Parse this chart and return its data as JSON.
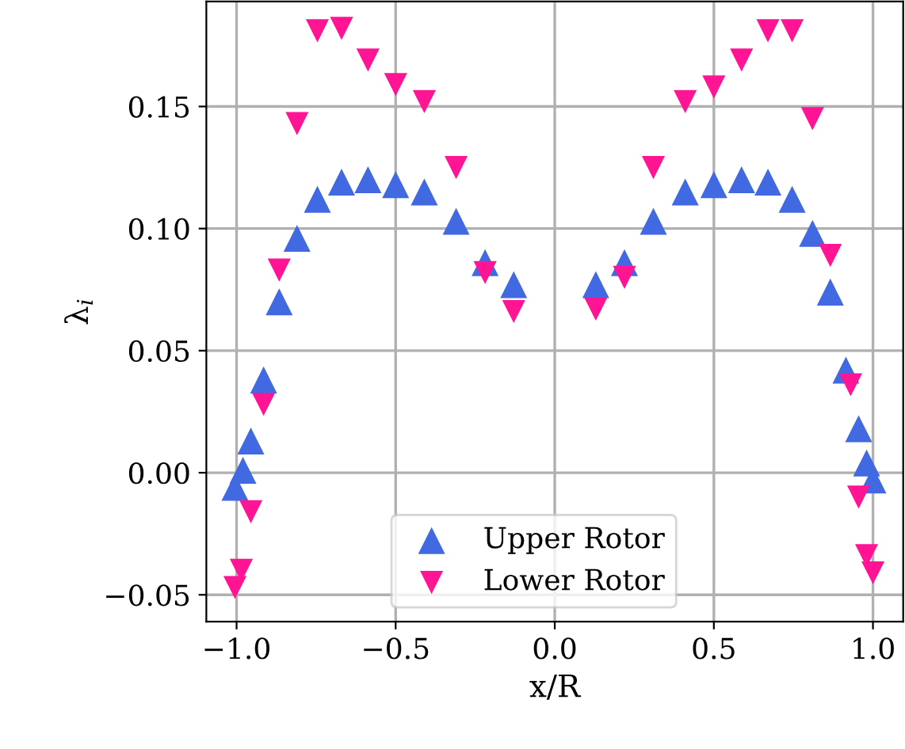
{
  "chart_data": {
    "type": "scatter",
    "xlabel": "x/R",
    "ylabel": "λ$_{i}$",
    "xlim": [
      -1.095,
      1.095
    ],
    "ylim": [
      -0.061,
      0.193
    ],
    "xticks": [
      {
        "value": -1.0,
        "label": "−1.0"
      },
      {
        "value": -0.5,
        "label": "−0.5"
      },
      {
        "value": 0.0,
        "label": "0.0"
      },
      {
        "value": 0.5,
        "label": "0.5"
      },
      {
        "value": 1.0,
        "label": "1.0"
      }
    ],
    "yticks": [
      {
        "value": -0.05,
        "label": "−0.05"
      },
      {
        "value": 0.0,
        "label": "0.00"
      },
      {
        "value": 0.05,
        "label": "0.05"
      },
      {
        "value": 0.1,
        "label": "0.10"
      },
      {
        "value": 0.15,
        "label": "0.15"
      }
    ],
    "grid": true,
    "legend": "bottom",
    "series": [
      {
        "name": "Upper Rotor",
        "color": "#4169e1",
        "marker": "triangle",
        "x": [
          -1.005,
          -0.98,
          -0.955,
          -0.915,
          -0.866,
          -0.81,
          -0.746,
          -0.67,
          -0.587,
          -0.5,
          -0.41,
          -0.31,
          -0.219,
          -0.129,
          0.129,
          0.219,
          0.31,
          0.41,
          0.5,
          0.587,
          0.67,
          0.746,
          0.81,
          0.866,
          0.915,
          0.955,
          0.98,
          1.0
        ],
        "values": [
          -0.006,
          0.001,
          0.013,
          0.038,
          0.07,
          0.096,
          0.112,
          0.119,
          0.12,
          0.118,
          0.115,
          0.103,
          0.086,
          0.077,
          0.077,
          0.086,
          0.103,
          0.115,
          0.118,
          0.12,
          0.119,
          0.112,
          0.098,
          0.074,
          0.042,
          0.018,
          0.004,
          -0.003
        ]
      },
      {
        "name": "Lower Rotor",
        "color": "#ff1493",
        "marker": "triangle_down",
        "x": [
          -1.005,
          -0.985,
          -0.955,
          -0.915,
          -0.866,
          -0.81,
          -0.746,
          -0.67,
          -0.587,
          -0.5,
          -0.41,
          -0.31,
          -0.219,
          -0.129,
          0.129,
          0.219,
          0.31,
          0.41,
          0.5,
          0.587,
          0.67,
          0.746,
          0.81,
          0.866,
          0.93,
          0.955,
          0.98,
          1.0
        ],
        "values": [
          -0.047,
          -0.04,
          -0.016,
          0.028,
          0.083,
          0.143,
          0.181,
          0.182,
          0.169,
          0.159,
          0.152,
          0.125,
          0.082,
          0.066,
          0.067,
          0.08,
          0.125,
          0.152,
          0.158,
          0.169,
          0.181,
          0.181,
          0.145,
          0.089,
          0.036,
          -0.01,
          -0.034,
          -0.041
        ]
      }
    ]
  }
}
